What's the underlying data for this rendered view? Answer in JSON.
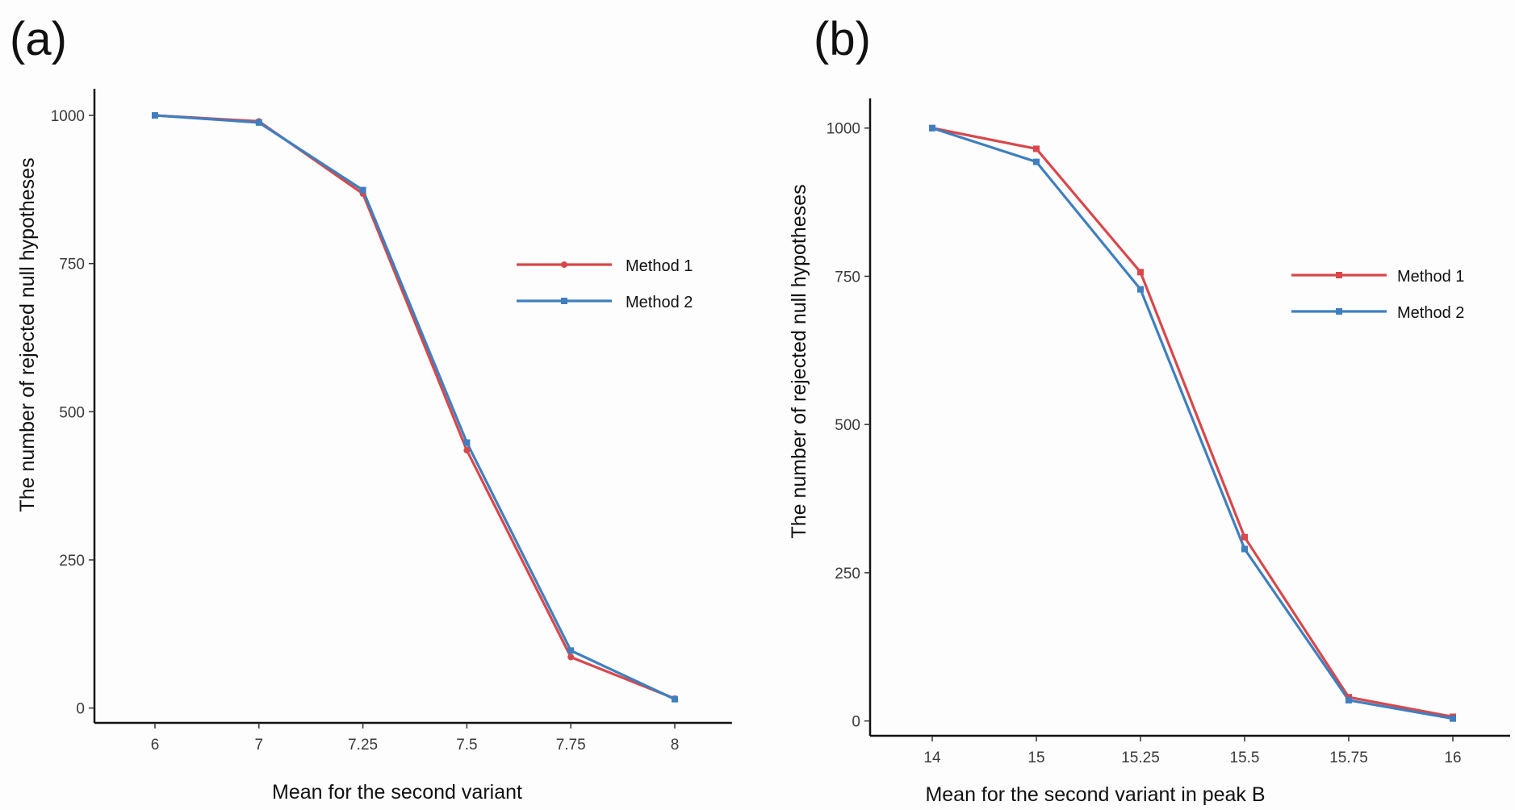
{
  "colors": {
    "method1": "#d9474b",
    "method2": "#3f7fbf"
  },
  "chart_data": [
    {
      "type": "line",
      "panel_label": "(a)",
      "title": "",
      "xlabel": "Mean for the second variant",
      "ylabel": "The number of rejected null hypotheses",
      "categories": [
        "6",
        "7",
        "7.25",
        "7.5",
        "7.75",
        "8"
      ],
      "ylim": [
        -25,
        1045
      ],
      "yticks": [
        0,
        250,
        500,
        750,
        1000
      ],
      "ytick_labels": [
        "0",
        "250",
        "500",
        "750",
        "1000"
      ],
      "grid": false,
      "legend_position": "right",
      "series": [
        {
          "name": "Method 1",
          "color_key": "method1",
          "marker": "circle",
          "values": [
            1000,
            990,
            868,
            435,
            86,
            16
          ]
        },
        {
          "name": "Method 2",
          "color_key": "method2",
          "marker": "square",
          "values": [
            1000,
            988,
            874,
            448,
            97,
            15
          ]
        }
      ]
    },
    {
      "type": "line",
      "panel_label": "(b)",
      "title": "",
      "xlabel": "Mean for the second variant in peak B",
      "ylabel": "The number of rejected null hypotheses",
      "categories": [
        "14",
        "15",
        "15.25",
        "15.5",
        "15.75",
        "16"
      ],
      "ylim": [
        -25,
        1050
      ],
      "yticks": [
        0,
        250,
        500,
        750,
        1000
      ],
      "ytick_labels": [
        "0",
        "250",
        "500",
        "750",
        "1000"
      ],
      "grid": false,
      "legend_position": "right",
      "series": [
        {
          "name": "Method 1",
          "color_key": "method1",
          "marker": "square",
          "values": [
            1000,
            965,
            757,
            310,
            40,
            7
          ]
        },
        {
          "name": "Method 2",
          "color_key": "method2",
          "marker": "square",
          "values": [
            1000,
            943,
            728,
            290,
            35,
            4
          ]
        }
      ]
    }
  ]
}
